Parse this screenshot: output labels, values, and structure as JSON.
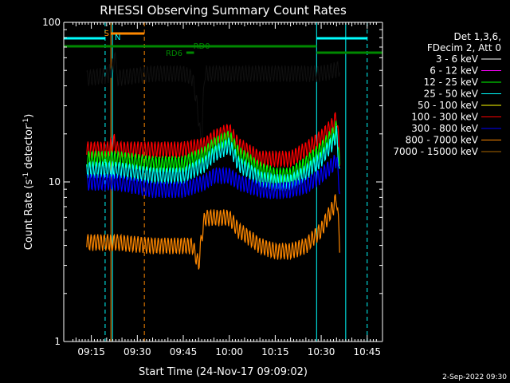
{
  "chart_data": {
    "type": "line",
    "title": "RHESSI Observing Summary Count Rates",
    "xlabel": "Start Time (24-Nov-17 09:09:02)",
    "ylabel": "Count Rate (s⁻¹ detector⁻¹)",
    "ylabel_text": "Count Rate (s",
    "ylabel_sup1": "-1",
    "ylabel_mid": " detector",
    "ylabel_sup2": "-1",
    "ylabel_end": ")",
    "y_scale": "log",
    "ylim": [
      1,
      100
    ],
    "xlim_minutes": [
      "09:06",
      "10:50"
    ],
    "x_ticks": [
      {
        "label": "09:15",
        "min": 15
      },
      {
        "label": "09:30",
        "min": 30
      },
      {
        "label": "09:45",
        "min": 45
      },
      {
        "label": "10:00",
        "min": 60
      },
      {
        "label": "10:15",
        "min": 75
      },
      {
        "label": "10:30",
        "min": 90
      },
      {
        "label": "10:45",
        "min": 105
      }
    ],
    "y_ticks": [
      {
        "label": "1",
        "value": 1
      },
      {
        "label": "10",
        "value": 10
      },
      {
        "label": "100",
        "value": 100
      }
    ],
    "legend_header": [
      "Det 1,3,6,",
      "FDecim 2, Att 0"
    ],
    "legend": [
      {
        "label": "3 - 6 keV",
        "color": "#000000"
      },
      {
        "label": "6 - 12 keV",
        "color": "#ff00ff"
      },
      {
        "label": "12 - 25 keV",
        "color": "#00ff00"
      },
      {
        "label": "25 - 50 keV",
        "color": "#00ffff"
      },
      {
        "label": "50 - 100 keV",
        "color": "#ffff00"
      },
      {
        "label": "100 - 300 keV",
        "color": "#ff0000"
      },
      {
        "label": "300 - 800 keV",
        "color": "#0000ff"
      },
      {
        "label": "800 - 7000 keV",
        "color": "#ff8800"
      },
      {
        "label": "7000 - 15000 keV",
        "color": "#aa6600"
      }
    ],
    "flag_labels": {
      "saa": "S",
      "night": "N",
      "rd0": "RD0",
      "rd6": "RD6"
    },
    "date_stamp": "2-Sep-2022 09:30",
    "series": [
      {
        "name": "3 - 6 keV",
        "color": "#000000",
        "points": [
          [
            13.5,
            45
          ],
          [
            20.5,
            47
          ],
          [
            22.2,
            55
          ],
          [
            23,
            60
          ],
          [
            23.3,
            45
          ],
          [
            35,
            48
          ],
          [
            45,
            48
          ],
          [
            48,
            45
          ],
          [
            50,
            25
          ],
          [
            51,
            15
          ],
          [
            52,
            48
          ],
          [
            60,
            48
          ],
          [
            75,
            48
          ],
          [
            90,
            48
          ],
          [
            94,
            50
          ],
          [
            96,
            52
          ]
        ]
      },
      {
        "name": "100 - 300 keV",
        "color": "#ff0000",
        "points": [
          [
            13.5,
            16
          ],
          [
            20.5,
            16
          ],
          [
            22.5,
            18
          ],
          [
            23.3,
            16
          ],
          [
            35,
            16
          ],
          [
            45,
            16
          ],
          [
            52,
            17
          ],
          [
            55,
            19
          ],
          [
            60,
            21
          ],
          [
            63,
            17
          ],
          [
            70,
            14
          ],
          [
            75,
            14
          ],
          [
            80,
            14
          ],
          [
            85,
            16
          ],
          [
            90,
            19
          ],
          [
            94,
            23
          ],
          [
            95,
            26
          ],
          [
            96,
            14
          ]
        ]
      },
      {
        "name": "12 - 25 keV",
        "color": "#00ff00",
        "points": [
          [
            13.5,
            14
          ],
          [
            20.5,
            14
          ],
          [
            23.3,
            14
          ],
          [
            35,
            13
          ],
          [
            45,
            13
          ],
          [
            52,
            15
          ],
          [
            55,
            17
          ],
          [
            60,
            19
          ],
          [
            63,
            15
          ],
          [
            70,
            12
          ],
          [
            75,
            11
          ],
          [
            80,
            11
          ],
          [
            85,
            13
          ],
          [
            90,
            16
          ],
          [
            94,
            20
          ],
          [
            95,
            22
          ],
          [
            96,
            12
          ]
        ]
      },
      {
        "name": "25 - 50 keV",
        "color": "#00ffff",
        "points": [
          [
            13.5,
            12
          ],
          [
            20.5,
            12
          ],
          [
            23.3,
            12
          ],
          [
            35,
            11
          ],
          [
            45,
            11
          ],
          [
            52,
            13
          ],
          [
            55,
            15
          ],
          [
            60,
            17
          ],
          [
            63,
            13
          ],
          [
            70,
            10.5
          ],
          [
            75,
            10
          ],
          [
            80,
            10
          ],
          [
            85,
            11.5
          ],
          [
            90,
            14
          ],
          [
            94,
            18
          ],
          [
            95,
            20
          ],
          [
            96,
            11
          ]
        ]
      },
      {
        "name": "300 - 800 keV",
        "color": "#0000ff",
        "points": [
          [
            13.5,
            10
          ],
          [
            20.5,
            10
          ],
          [
            23.3,
            10
          ],
          [
            35,
            9
          ],
          [
            45,
            9
          ],
          [
            52,
            10
          ],
          [
            55,
            11
          ],
          [
            60,
            11
          ],
          [
            63,
            10
          ],
          [
            70,
            9
          ],
          [
            75,
            8.8
          ],
          [
            80,
            9
          ],
          [
            85,
            9.5
          ],
          [
            90,
            11
          ],
          [
            94,
            13
          ],
          [
            95,
            14
          ],
          [
            96,
            9
          ]
        ]
      },
      {
        "name": "800 - 7000 keV",
        "color": "#ff8800",
        "points": [
          [
            13.5,
            4.2
          ],
          [
            20.5,
            4.2
          ],
          [
            23.3,
            4.2
          ],
          [
            35,
            4
          ],
          [
            45,
            4
          ],
          [
            48,
            4
          ],
          [
            50,
            3
          ],
          [
            52,
            6
          ],
          [
            60,
            6
          ],
          [
            63,
            5
          ],
          [
            70,
            4
          ],
          [
            75,
            3.7
          ],
          [
            80,
            3.7
          ],
          [
            85,
            4
          ],
          [
            90,
            5
          ],
          [
            94,
            7
          ],
          [
            95,
            8
          ],
          [
            96,
            4
          ]
        ]
      }
    ]
  }
}
